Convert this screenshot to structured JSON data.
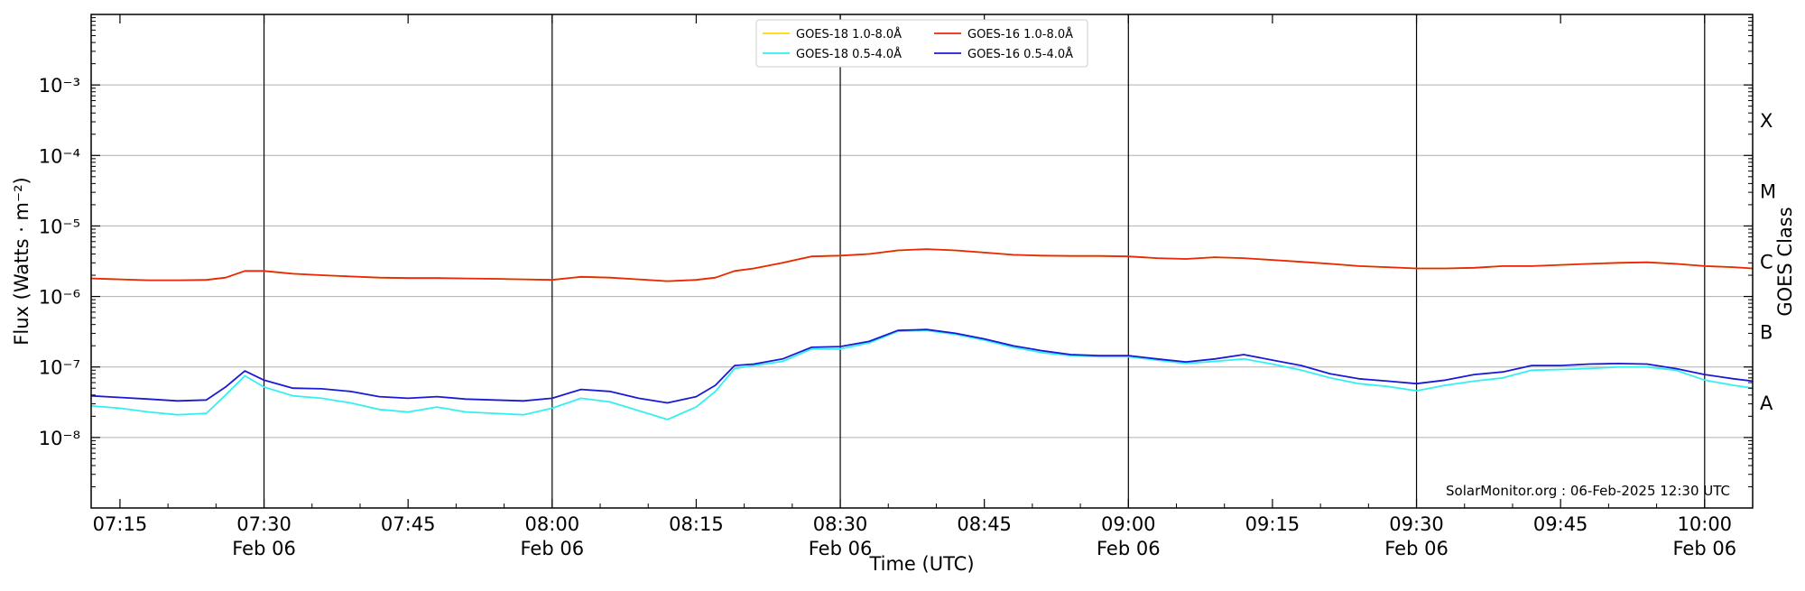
{
  "chart_data": {
    "type": "line",
    "xlabel": "Time (UTC)",
    "ylabel": "Flux (Watts · m⁻²)",
    "ylabel_right": "GOES Class",
    "y_scale": "log",
    "ylim": [
      1e-09,
      0.01
    ],
    "xlim": [
      "2025-02-06 07:12",
      "2025-02-06 10:05"
    ],
    "grid": "horizontal at decades",
    "legend_position": "top-center",
    "x_ticks": [
      {
        "t": "07:15",
        "line1": "07:15",
        "line2": ""
      },
      {
        "t": "07:30",
        "line1": "07:30",
        "line2": "Feb 06"
      },
      {
        "t": "07:45",
        "line1": "07:45",
        "line2": ""
      },
      {
        "t": "08:00",
        "line1": "08:00",
        "line2": "Feb 06"
      },
      {
        "t": "08:15",
        "line1": "08:15",
        "line2": ""
      },
      {
        "t": "08:30",
        "line1": "08:30",
        "line2": "Feb 06"
      },
      {
        "t": "08:45",
        "line1": "08:45",
        "line2": ""
      },
      {
        "t": "09:00",
        "line1": "09:00",
        "line2": "Feb 06"
      },
      {
        "t": "09:15",
        "line1": "09:15",
        "line2": ""
      },
      {
        "t": "09:30",
        "line1": "09:30",
        "line2": "Feb 06"
      },
      {
        "t": "09:45",
        "line1": "09:45",
        "line2": ""
      },
      {
        "t": "10:00",
        "line1": "10:00",
        "line2": "Feb 06"
      }
    ],
    "vertical_markers": [
      "07:30",
      "08:00",
      "08:30",
      "09:00",
      "09:30",
      "10:00"
    ],
    "y_ticks": [
      {
        "value": 1e-08,
        "label": "10⁻⁸"
      },
      {
        "value": 1e-07,
        "label": "10⁻⁷"
      },
      {
        "value": 1e-06,
        "label": "10⁻⁶"
      },
      {
        "value": 1e-05,
        "label": "10⁻⁵"
      },
      {
        "value": 0.0001,
        "label": "10⁻⁴"
      },
      {
        "value": 0.001,
        "label": "10⁻³"
      }
    ],
    "goes_classes": [
      {
        "label": "A",
        "value": 3.16e-08
      },
      {
        "label": "B",
        "value": 3.16e-07
      },
      {
        "label": "C",
        "value": 3.16e-06
      },
      {
        "label": "M",
        "value": 3.16e-05
      },
      {
        "label": "X",
        "value": 0.000316
      }
    ],
    "annotation": "SolarMonitor.org : 06-Feb-2025 12:30 UTC",
    "x": [
      "07:12",
      "07:15",
      "07:18",
      "07:21",
      "07:24",
      "07:26",
      "07:28",
      "07:30",
      "07:33",
      "07:36",
      "07:39",
      "07:42",
      "07:45",
      "07:48",
      "07:51",
      "07:54",
      "07:57",
      "08:00",
      "08:03",
      "08:06",
      "08:09",
      "08:12",
      "08:15",
      "08:17",
      "08:19",
      "08:21",
      "08:24",
      "08:27",
      "08:30",
      "08:33",
      "08:36",
      "08:39",
      "08:42",
      "08:45",
      "08:48",
      "08:51",
      "08:54",
      "08:57",
      "09:00",
      "09:03",
      "09:06",
      "09:09",
      "09:12",
      "09:15",
      "09:18",
      "09:21",
      "09:24",
      "09:27",
      "09:30",
      "09:33",
      "09:36",
      "09:39",
      "09:42",
      "09:45",
      "09:48",
      "09:51",
      "09:54",
      "09:57",
      "10:00",
      "10:03",
      "10:05"
    ],
    "series": [
      {
        "name": "GOES-18 1.0-8.0Å",
        "color": "#ffd700",
        "values": [
          1.8e-06,
          1.75e-06,
          1.7e-06,
          1.7e-06,
          1.72e-06,
          1.85e-06,
          2.3e-06,
          2.3e-06,
          2.1e-06,
          2e-06,
          1.92e-06,
          1.85e-06,
          1.82e-06,
          1.82e-06,
          1.8e-06,
          1.78e-06,
          1.75e-06,
          1.72e-06,
          1.9e-06,
          1.85e-06,
          1.75e-06,
          1.65e-06,
          1.72e-06,
          1.85e-06,
          2.3e-06,
          2.5e-06,
          3e-06,
          3.7e-06,
          3.8e-06,
          4e-06,
          4.5e-06,
          4.7e-06,
          4.5e-06,
          4.2e-06,
          3.9e-06,
          3.8e-06,
          3.75e-06,
          3.75e-06,
          3.7e-06,
          3.5e-06,
          3.4e-06,
          3.6e-06,
          3.5e-06,
          3.3e-06,
          3.1e-06,
          2.9e-06,
          2.7e-06,
          2.6e-06,
          2.5e-06,
          2.5e-06,
          2.55e-06,
          2.7e-06,
          2.7e-06,
          2.8e-06,
          2.9e-06,
          3e-06,
          3.05e-06,
          2.9e-06,
          2.7e-06,
          2.6e-06,
          2.5e-06
        ]
      },
      {
        "name": "GOES-16 1.0-8.0Å",
        "color": "#e8280c",
        "values": [
          1.8e-06,
          1.75e-06,
          1.7e-06,
          1.7e-06,
          1.72e-06,
          1.85e-06,
          2.3e-06,
          2.3e-06,
          2.1e-06,
          2e-06,
          1.92e-06,
          1.85e-06,
          1.82e-06,
          1.82e-06,
          1.8e-06,
          1.78e-06,
          1.75e-06,
          1.72e-06,
          1.9e-06,
          1.85e-06,
          1.75e-06,
          1.65e-06,
          1.72e-06,
          1.85e-06,
          2.3e-06,
          2.5e-06,
          3e-06,
          3.7e-06,
          3.8e-06,
          4e-06,
          4.5e-06,
          4.7e-06,
          4.5e-06,
          4.2e-06,
          3.9e-06,
          3.8e-06,
          3.75e-06,
          3.75e-06,
          3.7e-06,
          3.5e-06,
          3.4e-06,
          3.6e-06,
          3.5e-06,
          3.3e-06,
          3.1e-06,
          2.9e-06,
          2.7e-06,
          2.6e-06,
          2.5e-06,
          2.5e-06,
          2.55e-06,
          2.7e-06,
          2.7e-06,
          2.8e-06,
          2.9e-06,
          3e-06,
          3.05e-06,
          2.9e-06,
          2.7e-06,
          2.6e-06,
          2.5e-06
        ]
      },
      {
        "name": "GOES-18 0.5-4.0Å",
        "color": "#33f0f0",
        "values": [
          2.8e-08,
          2.6e-08,
          2.3e-08,
          2.1e-08,
          2.2e-08,
          4e-08,
          7.5e-08,
          5.2e-08,
          3.9e-08,
          3.6e-08,
          3.1e-08,
          2.5e-08,
          2.3e-08,
          2.7e-08,
          2.3e-08,
          2.2e-08,
          2.1e-08,
          2.6e-08,
          3.6e-08,
          3.2e-08,
          2.4e-08,
          1.8e-08,
          2.7e-08,
          4.5e-08,
          9.5e-08,
          1.05e-07,
          1.2e-07,
          1.8e-07,
          1.8e-07,
          2.2e-07,
          3.2e-07,
          3.3e-07,
          2.9e-07,
          2.4e-07,
          1.9e-07,
          1.6e-07,
          1.45e-07,
          1.4e-07,
          1.4e-07,
          1.25e-07,
          1.12e-07,
          1.2e-07,
          1.3e-07,
          1.1e-07,
          9e-08,
          7e-08,
          5.8e-08,
          5.3e-08,
          4.6e-08,
          5.5e-08,
          6.3e-08,
          7e-08,
          9e-08,
          9.2e-08,
          9.5e-08,
          1e-07,
          1e-07,
          9e-08,
          6.5e-08,
          5.5e-08,
          5e-08
        ]
      },
      {
        "name": "GOES-16 0.5-4.0Å",
        "color": "#1a1ad6",
        "values": [
          3.9e-08,
          3.7e-08,
          3.5e-08,
          3.3e-08,
          3.4e-08,
          5.2e-08,
          8.8e-08,
          6.5e-08,
          5e-08,
          4.9e-08,
          4.5e-08,
          3.8e-08,
          3.6e-08,
          3.8e-08,
          3.5e-08,
          3.4e-08,
          3.3e-08,
          3.6e-08,
          4.8e-08,
          4.5e-08,
          3.6e-08,
          3.1e-08,
          3.8e-08,
          5.5e-08,
          1.05e-07,
          1.1e-07,
          1.3e-07,
          1.9e-07,
          1.95e-07,
          2.3e-07,
          3.3e-07,
          3.4e-07,
          3e-07,
          2.5e-07,
          2e-07,
          1.7e-07,
          1.5e-07,
          1.45e-07,
          1.45e-07,
          1.3e-07,
          1.18e-07,
          1.3e-07,
          1.5e-07,
          1.25e-07,
          1.05e-07,
          8e-08,
          6.8e-08,
          6.3e-08,
          5.8e-08,
          6.5e-08,
          7.8e-08,
          8.5e-08,
          1.05e-07,
          1.05e-07,
          1.1e-07,
          1.12e-07,
          1.1e-07,
          9.5e-08,
          7.8e-08,
          6.8e-08,
          6.3e-08
        ]
      }
    ]
  }
}
